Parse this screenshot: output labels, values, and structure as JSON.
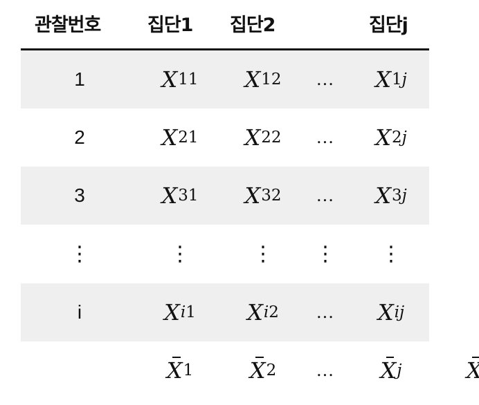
{
  "header": {
    "obs": "관찰번호",
    "group1": "집단1",
    "group2": "집단2",
    "groupj": "집단j"
  },
  "rows": [
    {
      "obs": "1",
      "g1_var": "X",
      "g1_sub": "11",
      "g2_var": "X",
      "g2_sub": "12",
      "dots": "...",
      "gj_var": "X",
      "gj_sub_a": "1",
      "gj_sub_b": "j"
    },
    {
      "obs": "2",
      "g1_var": "X",
      "g1_sub": "21",
      "g2_var": "X",
      "g2_sub": "22",
      "dots": "...",
      "gj_var": "X",
      "gj_sub_a": "2",
      "gj_sub_b": "j"
    },
    {
      "obs": "3",
      "g1_var": "X",
      "g1_sub": "31",
      "g2_var": "X",
      "g2_sub": "32",
      "dots": "...",
      "gj_var": "X",
      "gj_sub_a": "3",
      "gj_sub_b": "j"
    }
  ],
  "vdots": "⋮",
  "row_i": {
    "obs": "i",
    "g1_var": "X",
    "g1_sub_a": "i",
    "g1_sub_b": "1",
    "g2_var": "X",
    "g2_sub_a": "i",
    "g2_sub_b": "2",
    "dots": "...",
    "gj_var": "X",
    "gj_sub": "ij"
  },
  "means": {
    "g1_var": "X",
    "g1_sub": "1",
    "g2_var": "X",
    "g2_sub": "2",
    "dots": "...",
    "gj_var": "X",
    "gj_sub": "j",
    "grand_var": "X"
  }
}
